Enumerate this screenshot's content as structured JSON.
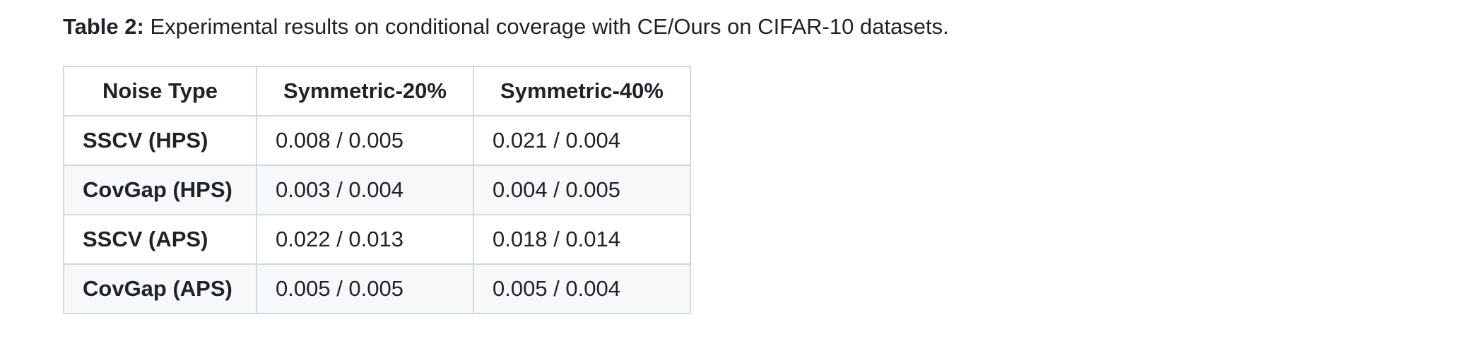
{
  "caption": {
    "label": "Table 2:",
    "text": " Experimental results on conditional coverage with CE/Ours on CIFAR-10 datasets."
  },
  "table": {
    "headers": [
      "Noise Type",
      "Symmetric-20%",
      "Symmetric-40%"
    ],
    "rows": [
      [
        "SSCV (HPS)",
        "0.008 / 0.005",
        "0.021 / 0.004"
      ],
      [
        "CovGap (HPS)",
        "0.003 / 0.004",
        "0.004 / 0.005"
      ],
      [
        "SSCV (APS)",
        "0.022 / 0.013",
        "0.018 / 0.014"
      ],
      [
        "CovGap (APS)",
        "0.005 / 0.005",
        "0.005 / 0.004"
      ]
    ]
  },
  "colors": {
    "text": "#1f2328",
    "border": "#d1d9e0",
    "stripe": "#f6f8fa"
  }
}
